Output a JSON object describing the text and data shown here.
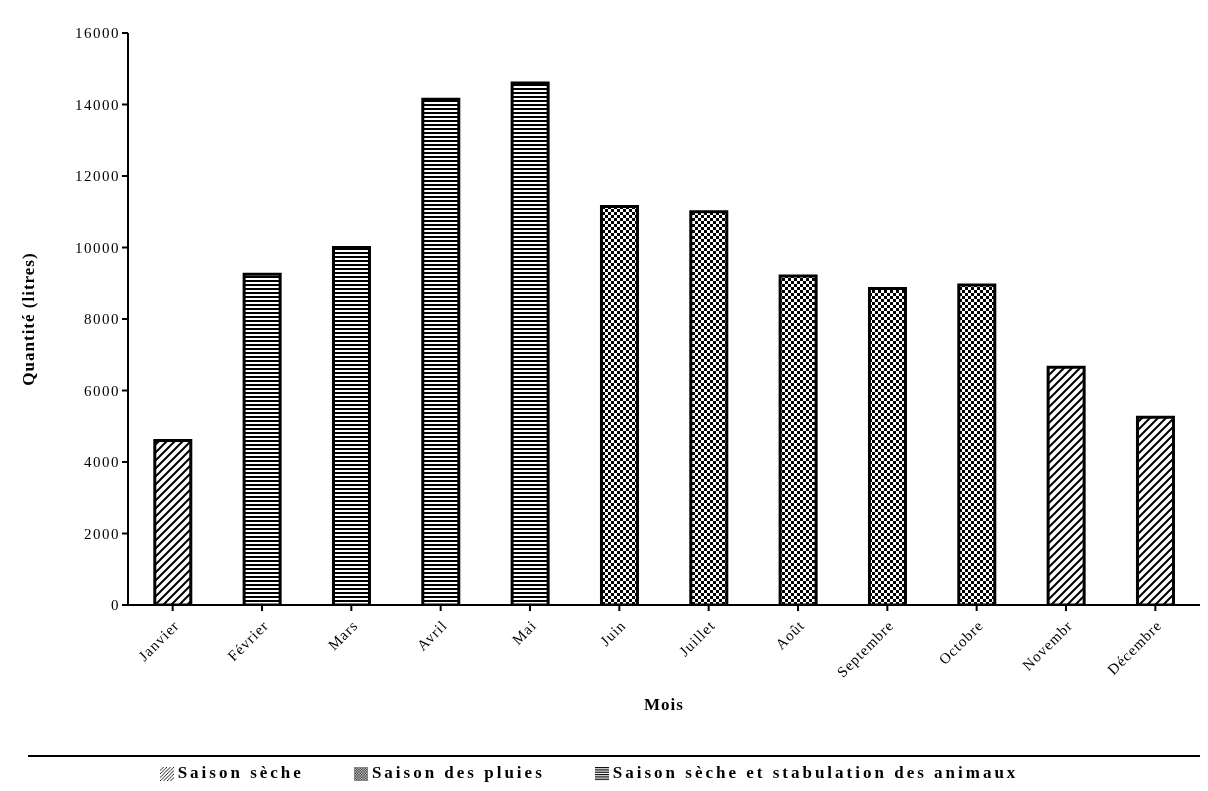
{
  "chart_data": {
    "type": "bar",
    "xlabel": "Mois",
    "ylabel": "Quantité (litres)",
    "categories": [
      "Janvier",
      "Février",
      "Mars",
      "Avril",
      "Mai",
      "Juin",
      "Juillet",
      "Août",
      "Septembre",
      "Octobre",
      "Novembr",
      "Décembre"
    ],
    "stacked": true,
    "series": [
      {
        "name": "Saison sèche",
        "color": "#000000",
        "values": [
          4600,
          null,
          null,
          null,
          null,
          null,
          null,
          null,
          null,
          null,
          6650,
          5250
        ]
      },
      {
        "name": "Saison des pluies",
        "color": "#000000",
        "values": [
          null,
          null,
          null,
          null,
          null,
          11150,
          11000,
          9200,
          8850,
          8950,
          null,
          null
        ]
      },
      {
        "name": "Saison sèche et stabulation des animaux",
        "color": "#000000",
        "values": [
          null,
          9250,
          10000,
          14150,
          14600,
          null,
          null,
          null,
          null,
          null,
          null,
          null
        ]
      }
    ],
    "ylim": [
      0,
      16000
    ],
    "yticks": [
      0,
      2000,
      4000,
      6000,
      8000,
      10000,
      12000,
      14000,
      16000
    ],
    "grid": false,
    "legend": "bottom"
  }
}
